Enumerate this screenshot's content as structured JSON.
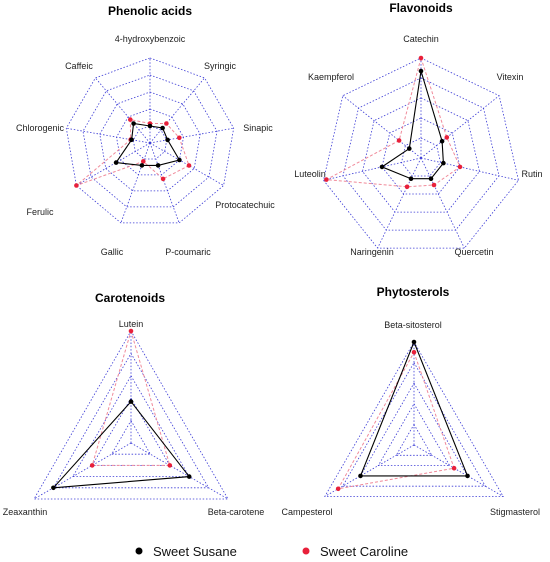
{
  "chart_data": [
    {
      "type": "radar",
      "title": "Phenolic acids",
      "axes": [
        "4-hydroxybenzoic",
        "Syringic",
        "Sinapic",
        "Protocatechuic",
        "P-coumaric",
        "Gallic",
        "Ferulic",
        "Chlorogenic",
        "Caffeic"
      ],
      "rings": 5,
      "range": [
        0,
        1
      ],
      "series": [
        {
          "name": "Sweet Susane",
          "values": [
            0.2,
            0.23,
            0.21,
            0.4,
            0.28,
            0.28,
            0.46,
            0.22,
            0.3
          ]
        },
        {
          "name": "Sweet Caroline",
          "values": [
            0.23,
            0.3,
            0.35,
            0.53,
            0.45,
            0.23,
            1.0,
            0.23,
            0.36
          ]
        }
      ]
    },
    {
      "type": "radar",
      "title": "Flavonoids",
      "axes": [
        "Catechin",
        "Vitexin",
        "Rutin",
        "Quercetin",
        "Naringenin",
        "Luteolin",
        "Kaempferol"
      ],
      "rings": 5,
      "range": [
        0,
        1
      ],
      "series": [
        {
          "name": "Sweet Susane",
          "values": [
            0.87,
            0.27,
            0.23,
            0.23,
            0.23,
            0.4,
            0.15
          ]
        },
        {
          "name": "Sweet Caroline",
          "values": [
            1.0,
            0.33,
            0.4,
            0.3,
            0.32,
            0.97,
            0.28
          ]
        }
      ]
    },
    {
      "type": "radar",
      "title": "Carotenoids",
      "axes": [
        "Lutein",
        "Beta-carotene",
        "Zeaxanthin"
      ],
      "rings": 5,
      "range": [
        0,
        1
      ],
      "series": [
        {
          "name": "Sweet Susane",
          "values": [
            0.37,
            0.6,
            0.8
          ]
        },
        {
          "name": "Sweet Caroline",
          "values": [
            1.0,
            0.4,
            0.4
          ]
        }
      ]
    },
    {
      "type": "radar",
      "title": "Phytosterols",
      "axes": [
        "Beta-sitosterol",
        "Stigmasterol",
        "Campesterol"
      ],
      "rings": 5,
      "range": [
        0,
        1
      ],
      "series": [
        {
          "name": "Sweet Susane",
          "values": [
            1.0,
            0.6,
            0.6
          ]
        },
        {
          "name": "Sweet Caroline",
          "values": [
            0.9,
            0.45,
            0.85
          ]
        }
      ]
    }
  ],
  "legend": {
    "items": [
      {
        "label": "Sweet Susane",
        "color": "#000000"
      },
      {
        "label": "Sweet Caroline",
        "color": "#e8203a"
      }
    ]
  },
  "colors": {
    "grid": "#3a3ad6",
    "series_1": "#000000",
    "series_2": "#e8203a",
    "series_2_line": "#f08a9a"
  }
}
